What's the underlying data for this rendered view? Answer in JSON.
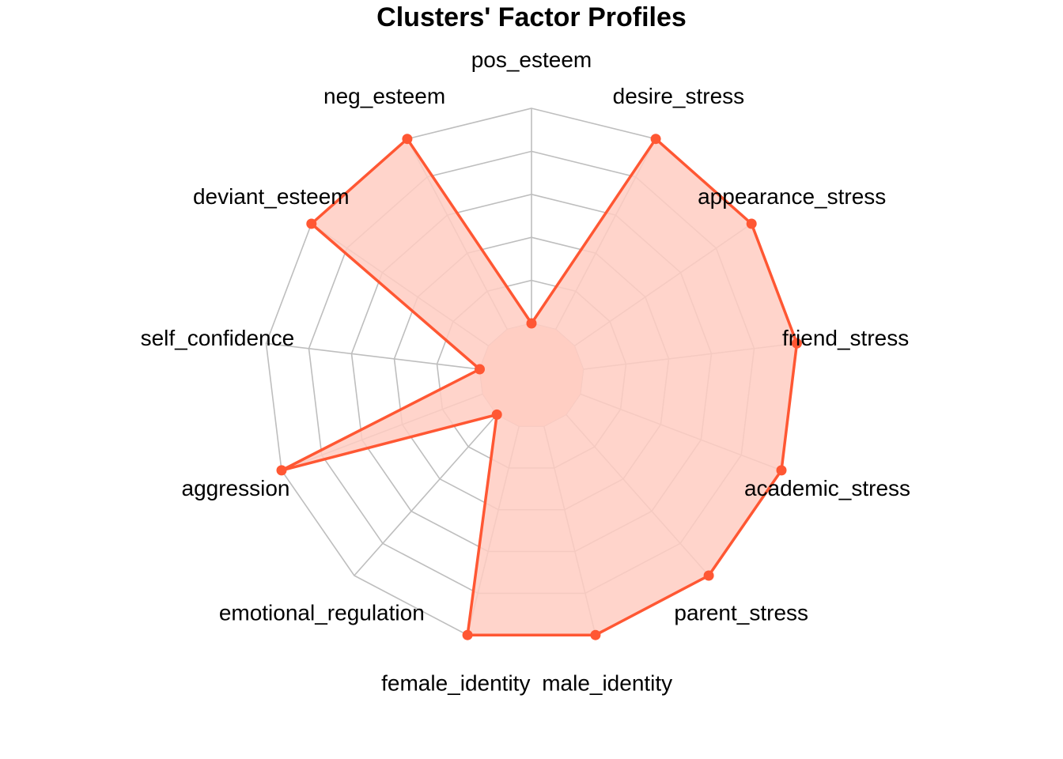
{
  "chart_data": {
    "type": "radar",
    "title": "Clusters' Factor Profiles",
    "axes": [
      "pos_esteem",
      "desire_stress",
      "appearance_stress",
      "friend_stress",
      "academic_stress",
      "parent_stress",
      "male_identity",
      "female_identity",
      "emotional_regulation",
      "aggression",
      "self_confidence",
      "deviant_esteem",
      "neg_esteem"
    ],
    "grid_levels": 5,
    "rlim": [
      0,
      1
    ],
    "series": [
      {
        "values": [
          0.0,
          1.0,
          1.0,
          1.0,
          1.0,
          1.0,
          1.0,
          1.0,
          0.0,
          1.0,
          0.0,
          1.0,
          1.0
        ],
        "color": "#FF5733",
        "fill": "#FFCCC2"
      }
    ],
    "grid_color": "#BEBEBE"
  }
}
